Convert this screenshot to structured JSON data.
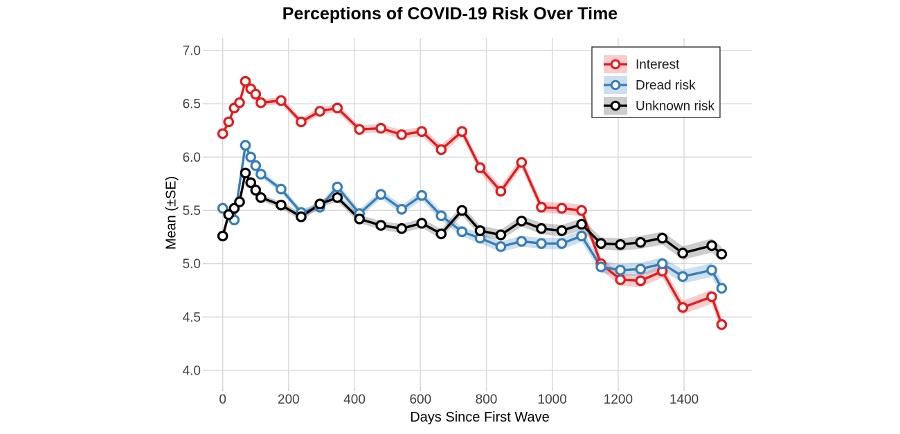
{
  "figure": {
    "title": "Perceptions of COVID-19 Risk Over Time",
    "x_axis_label": "Days Since First Wave",
    "y_axis_label": "Mean (±SE)"
  },
  "chart_data": {
    "type": "line",
    "title": "Perceptions of COVID-19 Risk Over Time",
    "xlabel": "Days Since First Wave",
    "ylabel": "Mean (±SE)",
    "x_ticks": [
      0,
      200,
      400,
      600,
      800,
      1000,
      1200,
      1400
    ],
    "y_ticks": [
      "7.0",
      "6.5",
      "6.0",
      "5.5",
      "5.0",
      "4.5",
      "4.0"
    ],
    "xlim": [
      -46,
      1606
    ],
    "ylim": [
      3.85,
      7.12
    ],
    "grid": true,
    "legend_position": "top-right-inside",
    "marker": "open-circle",
    "colors": {
      "interest": "#E41A1C",
      "dread_risk": "#377EB8",
      "unknown_risk": "#000000",
      "gridline": "#D8D8D8",
      "tick_text": "#404040"
    },
    "series": [
      {
        "name": "Interest",
        "color": "#E41A1C",
        "ribbon_color": "rgba(228,26,28,0.22)",
        "x": [
          0,
          18,
          35,
          51,
          69,
          85,
          100,
          116,
          177,
          238,
          295,
          348,
          415,
          480,
          543,
          604,
          663,
          726,
          781,
          844,
          907,
          967,
          1029,
          1089,
          1148,
          1207,
          1268,
          1334,
          1396,
          1484,
          1514
        ],
        "y": [
          6.22,
          6.33,
          6.46,
          6.51,
          6.71,
          6.64,
          6.59,
          6.51,
          6.53,
          6.33,
          6.43,
          6.46,
          6.26,
          6.27,
          6.21,
          6.24,
          6.07,
          6.24,
          5.9,
          5.68,
          5.95,
          5.53,
          5.52,
          5.5,
          5.0,
          4.85,
          4.84,
          4.93,
          4.59,
          4.69,
          4.43
        ],
        "se": [
          0.028,
          0.028,
          0.029,
          0.029,
          0.03,
          0.03,
          0.031,
          0.031,
          0.032,
          0.034,
          0.035,
          0.037,
          0.038,
          0.04,
          0.042,
          0.043,
          0.045,
          0.046,
          0.048,
          0.049,
          0.051,
          0.052,
          0.054,
          0.055,
          0.057,
          0.058,
          0.06,
          0.061,
          0.063,
          0.065,
          0.066
        ]
      },
      {
        "name": "Dread risk",
        "color": "#377EB8",
        "ribbon_color": "rgba(55,126,184,0.25)",
        "x": [
          0,
          35,
          69,
          85,
          100,
          116,
          177,
          238,
          295,
          348,
          415,
          480,
          543,
          604,
          663,
          726,
          781,
          844,
          907,
          967,
          1029,
          1089,
          1148,
          1207,
          1268,
          1334,
          1396,
          1484,
          1514
        ],
        "y": [
          5.52,
          5.41,
          6.11,
          6.0,
          5.92,
          5.84,
          5.7,
          5.48,
          5.53,
          5.72,
          5.47,
          5.65,
          5.51,
          5.64,
          5.45,
          5.3,
          5.24,
          5.16,
          5.21,
          5.19,
          5.19,
          5.26,
          4.97,
          4.94,
          4.95,
          5.0,
          4.88,
          4.94,
          4.77
        ],
        "se": [
          0.028,
          0.029,
          0.03,
          0.03,
          0.031,
          0.031,
          0.032,
          0.034,
          0.035,
          0.037,
          0.038,
          0.04,
          0.042,
          0.043,
          0.045,
          0.046,
          0.048,
          0.049,
          0.051,
          0.052,
          0.054,
          0.055,
          0.057,
          0.058,
          0.06,
          0.061,
          0.063,
          0.065,
          0.066
        ]
      },
      {
        "name": "Unknown risk",
        "color": "#000000",
        "ribbon_color": "rgba(0,0,0,0.20)",
        "x": [
          0,
          18,
          35,
          51,
          69,
          85,
          100,
          116,
          177,
          238,
          295,
          348,
          415,
          480,
          543,
          604,
          663,
          726,
          781,
          844,
          907,
          967,
          1029,
          1089,
          1148,
          1207,
          1268,
          1334,
          1396,
          1484,
          1514
        ],
        "y": [
          5.26,
          5.46,
          5.52,
          5.58,
          5.85,
          5.76,
          5.69,
          5.62,
          5.55,
          5.44,
          5.56,
          5.62,
          5.42,
          5.36,
          5.33,
          5.38,
          5.28,
          5.5,
          5.31,
          5.27,
          5.4,
          5.33,
          5.31,
          5.37,
          5.19,
          5.18,
          5.2,
          5.24,
          5.1,
          5.17,
          5.09
        ],
        "se": [
          0.028,
          0.028,
          0.029,
          0.029,
          0.03,
          0.03,
          0.031,
          0.031,
          0.032,
          0.034,
          0.035,
          0.037,
          0.038,
          0.04,
          0.042,
          0.043,
          0.045,
          0.046,
          0.048,
          0.049,
          0.051,
          0.052,
          0.054,
          0.055,
          0.057,
          0.058,
          0.06,
          0.061,
          0.063,
          0.065,
          0.066
        ]
      }
    ]
  }
}
